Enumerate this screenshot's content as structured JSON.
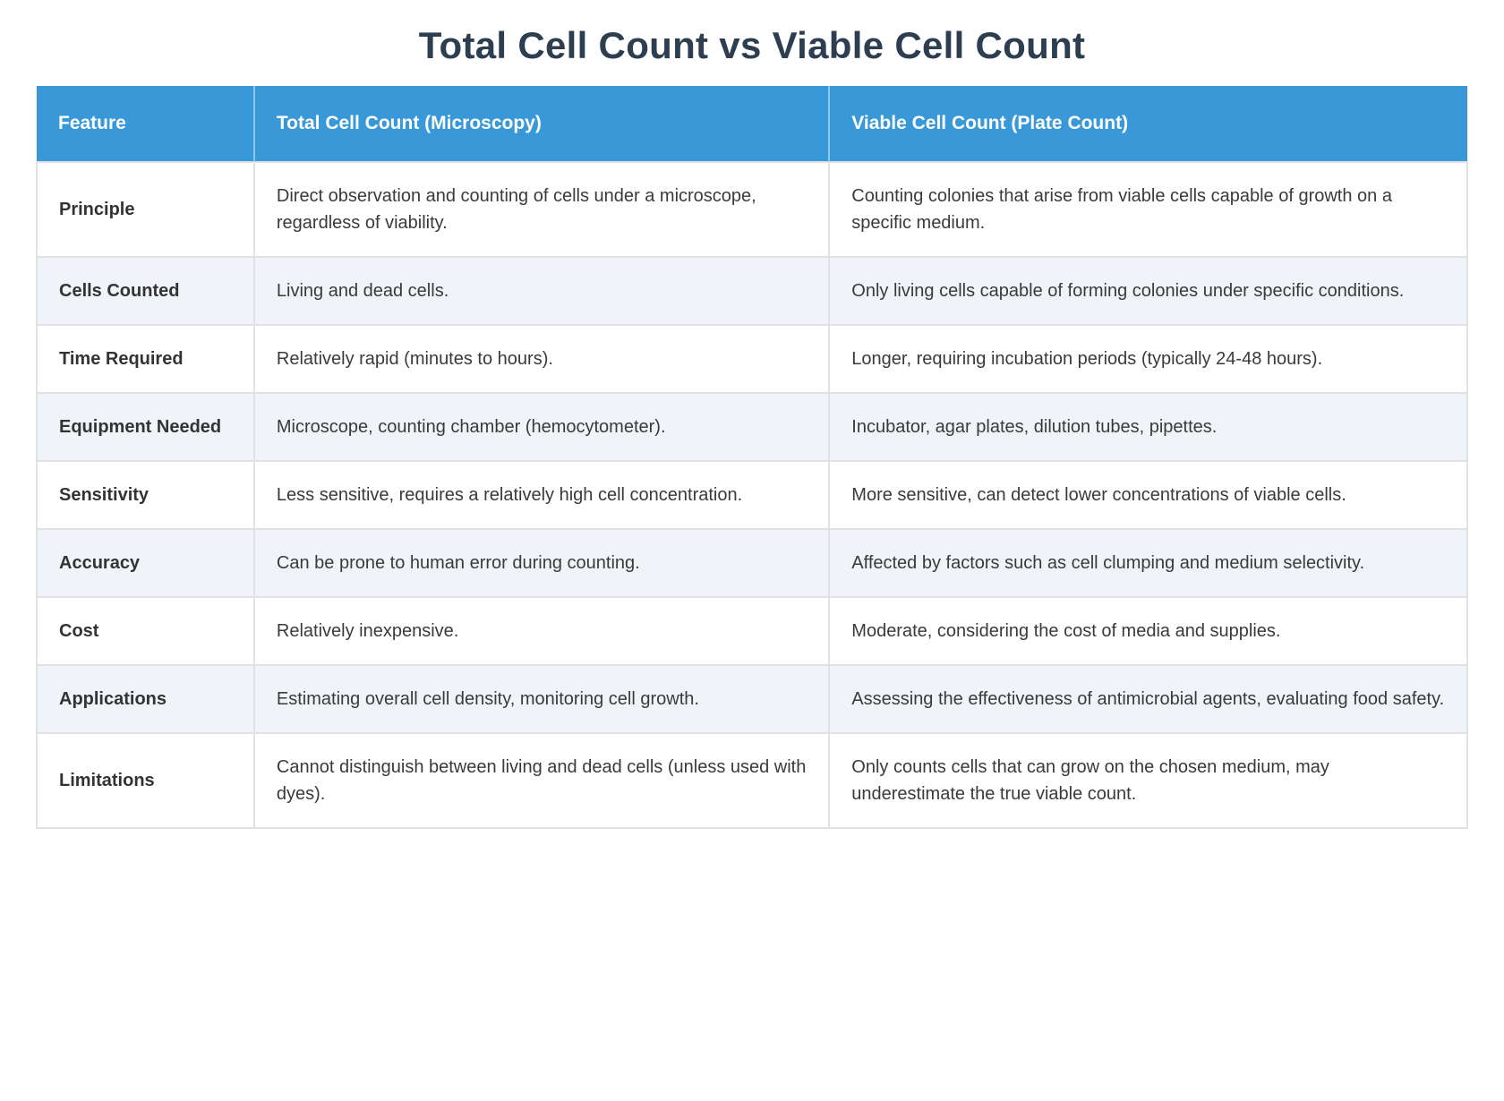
{
  "title": "Total Cell Count vs Viable Cell Count",
  "table": {
    "columns": [
      "Feature",
      "Total Cell Count (Microscopy)",
      "Viable Cell Count (Plate Count)"
    ],
    "rows": [
      {
        "feature": "Principle",
        "total": "Direct observation and counting of cells under a microscope, regardless of viability.",
        "viable": "Counting colonies that arise from viable cells capable of growth on a specific medium."
      },
      {
        "feature": "Cells Counted",
        "total": "Living and dead cells.",
        "viable": "Only living cells capable of forming colonies under specific conditions."
      },
      {
        "feature": "Time Required",
        "total": "Relatively rapid (minutes to hours).",
        "viable": "Longer, requiring incubation periods (typically 24-48 hours)."
      },
      {
        "feature": "Equipment Needed",
        "total": "Microscope, counting chamber (hemocytometer).",
        "viable": "Incubator, agar plates, dilution tubes, pipettes."
      },
      {
        "feature": "Sensitivity",
        "total": "Less sensitive, requires a relatively high cell concentration.",
        "viable": "More sensitive, can detect lower concentrations of viable cells."
      },
      {
        "feature": "Accuracy",
        "total": "Can be prone to human error during counting.",
        "viable": "Affected by factors such as cell clumping and medium selectivity."
      },
      {
        "feature": "Cost",
        "total": "Relatively inexpensive.",
        "viable": "Moderate, considering the cost of media and supplies."
      },
      {
        "feature": "Applications",
        "total": "Estimating overall cell density, monitoring cell growth.",
        "viable": "Assessing the effectiveness of antimicrobial agents, evaluating food safety."
      },
      {
        "feature": "Limitations",
        "total": "Cannot distinguish between living and dead cells (unless used with dyes).",
        "viable": "Only counts cells that can grow on the chosen medium, may underestimate the true viable count."
      }
    ]
  },
  "colors": {
    "header_bg": "#3999d8",
    "header_text": "#ffffff",
    "title_color": "#2c3e50",
    "alt_row_bg": "#f0f4f8",
    "border_color": "#dfe1e4",
    "body_text": "#3a3a3a",
    "label_text": "#333333"
  }
}
